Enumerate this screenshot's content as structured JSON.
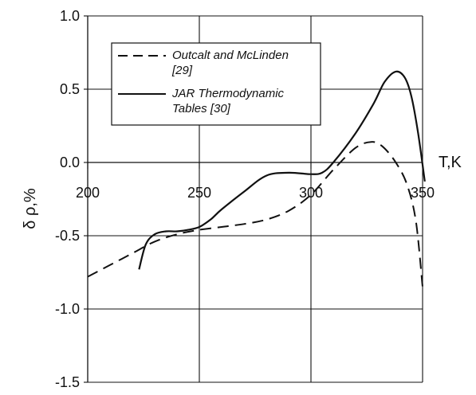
{
  "chart_data": {
    "type": "line",
    "xlabel": "T,K",
    "ylabel": "δ ρ,%",
    "xlim": [
      200,
      350
    ],
    "ylim": [
      -1.5,
      1.0
    ],
    "x_ticks": [
      "200",
      "250",
      "300",
      "350"
    ],
    "y_ticks": [
      "1.0",
      "0.5",
      "0.0",
      "-0.5",
      "-1.0",
      "-1.5"
    ],
    "grid": true,
    "legend_position": "top-left",
    "series": [
      {
        "name": "Outcalt and McLinden [29]",
        "line_style": "dashed",
        "points": [
          [
            200,
            -0.78
          ],
          [
            210,
            -0.7
          ],
          [
            220,
            -0.62
          ],
          [
            230,
            -0.54
          ],
          [
            240,
            -0.49
          ],
          [
            250,
            -0.46
          ],
          [
            260,
            -0.44
          ],
          [
            270,
            -0.42
          ],
          [
            280,
            -0.39
          ],
          [
            290,
            -0.33
          ],
          [
            300,
            -0.22
          ],
          [
            310,
            -0.05
          ],
          [
            320,
            0.1
          ],
          [
            327,
            0.14
          ],
          [
            332,
            0.11
          ],
          [
            338,
            0.0
          ],
          [
            343,
            -0.15
          ],
          [
            347,
            -0.4
          ],
          [
            350,
            -0.85
          ]
        ]
      },
      {
        "name": "JAR Thermodynamic Tables [30]",
        "line_style": "solid",
        "points": [
          [
            223,
            -0.73
          ],
          [
            226,
            -0.56
          ],
          [
            230,
            -0.49
          ],
          [
            235,
            -0.47
          ],
          [
            240,
            -0.47
          ],
          [
            245,
            -0.46
          ],
          [
            250,
            -0.44
          ],
          [
            255,
            -0.39
          ],
          [
            260,
            -0.32
          ],
          [
            270,
            -0.2
          ],
          [
            280,
            -0.09
          ],
          [
            290,
            -0.07
          ],
          [
            300,
            -0.08
          ],
          [
            305,
            -0.07
          ],
          [
            310,
            0.0
          ],
          [
            320,
            0.2
          ],
          [
            328,
            0.4
          ],
          [
            333,
            0.55
          ],
          [
            338,
            0.62
          ],
          [
            342,
            0.58
          ],
          [
            345,
            0.45
          ],
          [
            348,
            0.2
          ],
          [
            351,
            -0.13
          ]
        ]
      }
    ]
  }
}
